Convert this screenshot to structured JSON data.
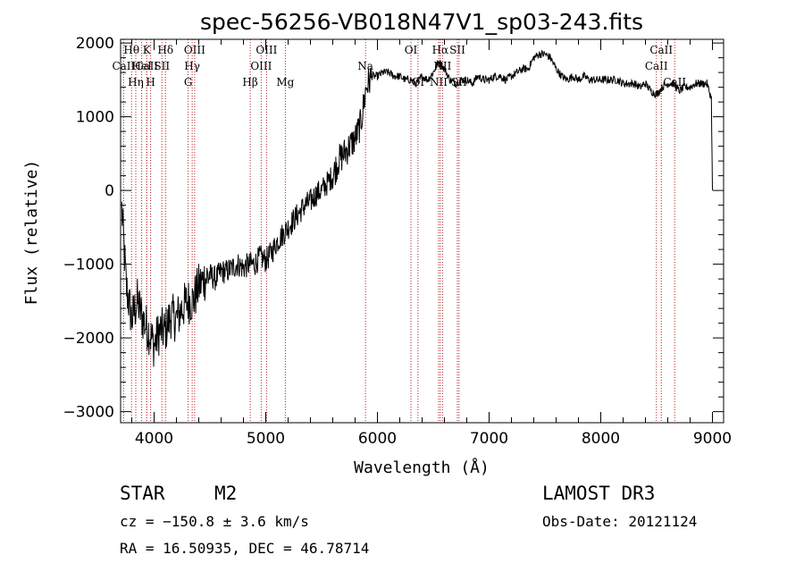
{
  "chart_data": {
    "type": "line",
    "title": "spec-56256-VB018N47V1_sp03-243.fits",
    "xlabel": "Wavelength (Å)",
    "ylabel": "Flux (relative)",
    "xlim": [
      3700,
      9100
    ],
    "ylim": [
      -3150,
      2050
    ],
    "xticks": [
      4000,
      5000,
      6000,
      7000,
      8000,
      9000
    ],
    "yticks": [
      -3000,
      -2000,
      -1000,
      0,
      1000,
      2000
    ],
    "xtick_labels": [
      "4000",
      "5000",
      "6000",
      "7000",
      "8000",
      "9000"
    ],
    "ytick_labels": [
      "−3000",
      "−2000",
      "−1000",
      "0",
      "1000",
      "2000"
    ],
    "line_color": "#000000",
    "marker_color": "#b22222",
    "series": [
      {
        "name": "flux",
        "x": [
          3710,
          3750,
          3800,
          3850,
          3900,
          3950,
          4000,
          4050,
          4100,
          4150,
          4200,
          4250,
          4300,
          4350,
          4400,
          4450,
          4500,
          4550,
          4600,
          4650,
          4700,
          4750,
          4800,
          4850,
          4900,
          4950,
          5000,
          5050,
          5100,
          5150,
          5200,
          5250,
          5300,
          5350,
          5400,
          5450,
          5500,
          5550,
          5600,
          5650,
          5700,
          5750,
          5800,
          5850,
          5900,
          5950,
          6000,
          6050,
          6100,
          6150,
          6200,
          6250,
          6300,
          6350,
          6400,
          6450,
          6500,
          6550,
          6600,
          6650,
          6700,
          6750,
          6800,
          6850,
          6900,
          6950,
          7000,
          7050,
          7100,
          7150,
          7200,
          7250,
          7300,
          7350,
          7400,
          7450,
          7500,
          7550,
          7600,
          7650,
          7700,
          7750,
          7800,
          7850,
          7900,
          7950,
          8000,
          8050,
          8100,
          8150,
          8200,
          8250,
          8300,
          8350,
          8400,
          8450,
          8500,
          8550,
          8600,
          8650,
          8700,
          8750,
          8800,
          8850,
          8900,
          8950,
          8990,
          9000
        ],
        "y": [
          -250,
          -1300,
          -1750,
          -1500,
          -1750,
          -1900,
          -2100,
          -1900,
          -1900,
          -1700,
          -1750,
          -1600,
          -1500,
          -1500,
          -1300,
          -1200,
          -1150,
          -1200,
          -1100,
          -1100,
          -1050,
          -1000,
          -1050,
          -1000,
          -1000,
          -900,
          -950,
          -850,
          -700,
          -600,
          -500,
          -400,
          -300,
          -200,
          -150,
          -50,
          0,
          100,
          200,
          400,
          500,
          600,
          700,
          900,
          1400,
          1550,
          1550,
          1600,
          1600,
          1550,
          1550,
          1500,
          1500,
          1450,
          1550,
          1500,
          1600,
          1750,
          1650,
          1500,
          1450,
          1500,
          1500,
          1450,
          1550,
          1500,
          1500,
          1550,
          1550,
          1500,
          1550,
          1600,
          1650,
          1650,
          1800,
          1850,
          1850,
          1800,
          1650,
          1550,
          1500,
          1550,
          1500,
          1550,
          1500,
          1500,
          1500,
          1500,
          1500,
          1500,
          1450,
          1450,
          1450,
          1400,
          1450,
          1350,
          1300,
          1400,
          1450,
          1450,
          1350,
          1400,
          1400,
          1450,
          1450,
          1450,
          1250,
          0
        ]
      }
    ],
    "line_markers": [
      {
        "label": "CaII",
        "wavelength": 3727,
        "row": 1
      },
      {
        "label": "Hθ",
        "wavelength": 3798,
        "row": 0
      },
      {
        "label": "CaII",
        "wavelength": 3934,
        "row": 1
      },
      {
        "label": "K",
        "wavelength": 3934,
        "row": 0
      },
      {
        "label": "Hη",
        "wavelength": 3836,
        "row": 2
      },
      {
        "label": "HeI",
        "wavelength": 3889,
        "row": 1
      },
      {
        "label": "H",
        "wavelength": 3969,
        "row": 2
      },
      {
        "label": "SII",
        "wavelength": 4070,
        "row": 1
      },
      {
        "label": "Hδ",
        "wavelength": 4102,
        "row": 0
      },
      {
        "label": "OIII",
        "wavelength": 4363,
        "row": 0
      },
      {
        "label": "Hγ",
        "wavelength": 4341,
        "row": 1
      },
      {
        "label": "G",
        "wavelength": 4305,
        "row": 2
      },
      {
        "label": "Hβ",
        "wavelength": 4861,
        "row": 2
      },
      {
        "label": "OIII",
        "wavelength": 5007,
        "row": 0
      },
      {
        "label": "OIII",
        "wavelength": 4959,
        "row": 1
      },
      {
        "label": "Mg",
        "wavelength": 5175,
        "row": 2
      },
      {
        "label": "Na",
        "wavelength": 5893,
        "row": 1
      },
      {
        "label": "OI",
        "wavelength": 6300,
        "row": 0
      },
      {
        "label": "OI",
        "wavelength": 6363,
        "row": 2
      },
      {
        "label": "Hα",
        "wavelength": 6563,
        "row": 0
      },
      {
        "label": "NII",
        "wavelength": 6548,
        "row": 2
      },
      {
        "label": "NII",
        "wavelength": 6583,
        "row": 1
      },
      {
        "label": "SII",
        "wavelength": 6716,
        "row": 0
      },
      {
        "label": "SII",
        "wavelength": 6731,
        "row": 2
      },
      {
        "label": "CaII",
        "wavelength": 8498,
        "row": 1
      },
      {
        "label": "CaII",
        "wavelength": 8542,
        "row": 0
      },
      {
        "label": "CaII",
        "wavelength": 8662,
        "row": 2
      }
    ]
  },
  "info": {
    "object_class": "STAR",
    "subclass": "M2",
    "survey": "LAMOST DR3",
    "redshift_line": "cz = −150.8 ± 3.6 km/s",
    "obs_date_line": "Obs-Date: 20121124",
    "coords_line": "RA =  16.50935, DEC =  46.78714"
  }
}
